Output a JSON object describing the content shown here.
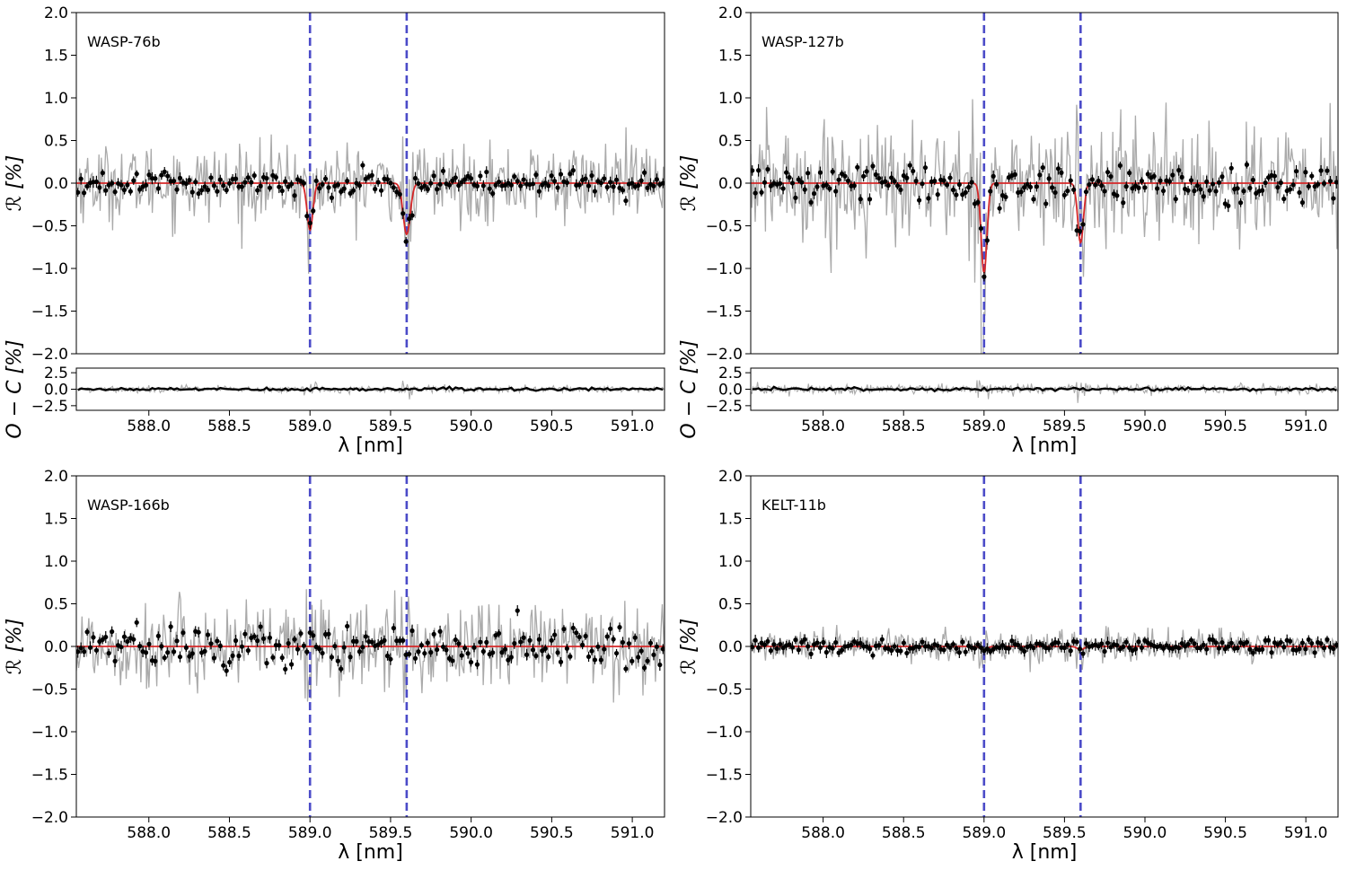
{
  "figure": {
    "x_unit_label": "λ [nm]",
    "y_label_main": "ℛ [%]",
    "y_label_residual": "O − C [%]",
    "colors": {
      "noisy": "#aaaaaa",
      "binned": "#000000",
      "model": "#d62728",
      "line_marker": "#4b4bc8"
    }
  },
  "chart_data": [
    {
      "type": "line",
      "name": "WASP-76b",
      "xlim": [
        587.55,
        591.2
      ],
      "ylim": [
        -2.0,
        2.0
      ],
      "xticks": [
        588.0,
        588.5,
        589.0,
        589.5,
        590.0,
        590.5,
        591.0
      ],
      "yticks": [
        -2.0,
        -1.5,
        -1.0,
        -0.5,
        0.0,
        0.5,
        1.0,
        1.5,
        2.0
      ],
      "vlines": [
        589.0,
        589.6
      ],
      "model": {
        "baseline": 0.0,
        "lines": [
          {
            "center": 589.0,
            "depth": -0.55,
            "sigma": 0.018
          },
          {
            "center": 589.6,
            "depth": -0.6,
            "sigma": 0.022
          }
        ]
      },
      "noise_amplitude": 0.22,
      "binned_scatter": 0.07,
      "residuals": {
        "ylim": [
          -3.2,
          3.2
        ],
        "yticks": [
          -2.5,
          0.0,
          2.5
        ],
        "spread": 0.25
      },
      "show_xlabels": true
    },
    {
      "type": "line",
      "name": "WASP-127b",
      "xlim": [
        587.55,
        591.2
      ],
      "ylim": [
        -2.0,
        2.0
      ],
      "xticks": [
        588.0,
        588.5,
        589.0,
        589.5,
        590.0,
        590.5,
        591.0
      ],
      "yticks": [
        -2.0,
        -1.5,
        -1.0,
        -0.5,
        0.0,
        0.5,
        1.0,
        1.5,
        2.0
      ],
      "vlines": [
        589.0,
        589.6
      ],
      "model": {
        "baseline": 0.0,
        "lines": [
          {
            "center": 589.0,
            "depth": -1.05,
            "sigma": 0.018
          },
          {
            "center": 589.6,
            "depth": -0.7,
            "sigma": 0.018
          }
        ]
      },
      "noise_amplitude": 0.35,
      "binned_scatter": 0.11,
      "residuals": {
        "ylim": [
          -3.2,
          3.2
        ],
        "yticks": [
          -2.5,
          0.0,
          2.5
        ],
        "spread": 0.35
      },
      "show_xlabels": true
    },
    {
      "type": "line",
      "name": "WASP-166b",
      "xlim": [
        587.55,
        591.2
      ],
      "ylim": [
        -2.0,
        2.0
      ],
      "xticks": [
        588.0,
        588.5,
        589.0,
        589.5,
        590.0,
        590.5,
        591.0
      ],
      "yticks": [
        -2.0,
        -1.5,
        -1.0,
        -0.5,
        0.0,
        0.5,
        1.0,
        1.5,
        2.0
      ],
      "vlines": [
        589.0,
        589.6
      ],
      "model": {
        "baseline": 0.0,
        "lines": []
      },
      "noise_amplitude": 0.25,
      "binned_scatter": 0.13,
      "residuals": null,
      "show_xlabels": true
    },
    {
      "type": "line",
      "name": "KELT-11b",
      "xlim": [
        587.55,
        591.2
      ],
      "ylim": [
        -2.0,
        2.0
      ],
      "xticks": [
        588.0,
        588.5,
        589.0,
        589.5,
        590.0,
        590.5,
        591.0
      ],
      "yticks": [
        -2.0,
        -1.5,
        -1.0,
        -0.5,
        0.0,
        0.5,
        1.0,
        1.5,
        2.0
      ],
      "vlines": [
        589.0,
        589.6
      ],
      "model": {
        "baseline": 0.0,
        "lines": [
          {
            "center": 589.0,
            "depth": -0.04,
            "sigma": 0.02
          },
          {
            "center": 589.6,
            "depth": -0.04,
            "sigma": 0.02
          }
        ]
      },
      "noise_amplitude": 0.09,
      "binned_scatter": 0.04,
      "residuals": null,
      "show_xlabels": true
    }
  ]
}
